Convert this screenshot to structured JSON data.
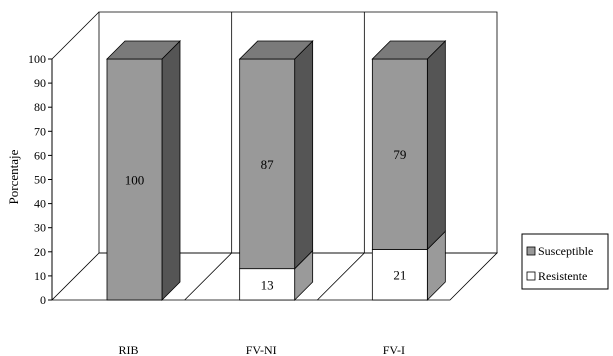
{
  "chart_data": {
    "type": "bar",
    "stacked": true,
    "three_d": true,
    "categories": [
      "RIB",
      "FV-NI",
      "FV-I"
    ],
    "series": [
      {
        "name": "Resistente",
        "values": [
          0,
          13,
          21
        ],
        "color": "#ffffff"
      },
      {
        "name": "Susceptible",
        "values": [
          100,
          87,
          79
        ],
        "color": "#999999"
      }
    ],
    "data_labels": [
      {
        "category": "RIB",
        "series": "Susceptible",
        "text": "100"
      },
      {
        "category": "FV-NI",
        "series": "Susceptible",
        "text": "87"
      },
      {
        "category": "FV-NI",
        "series": "Resistente",
        "text": "13"
      },
      {
        "category": "FV-I",
        "series": "Susceptible",
        "text": "79"
      },
      {
        "category": "FV-I",
        "series": "Resistente",
        "text": "21"
      }
    ],
    "yticks": [
      "0",
      "10",
      "20",
      "30",
      "40",
      "50",
      "60",
      "70",
      "80",
      "90",
      "100"
    ],
    "ylim": [
      0,
      100
    ],
    "ylabel": "Porcentaje",
    "xlabel": "",
    "legend": {
      "position": "right",
      "entries": [
        "Susceptible",
        "Resistente"
      ]
    },
    "colors": {
      "front": "#999999",
      "side": "#555555",
      "top": "#7a7a7a",
      "white_side": "#9a9a9a"
    }
  }
}
